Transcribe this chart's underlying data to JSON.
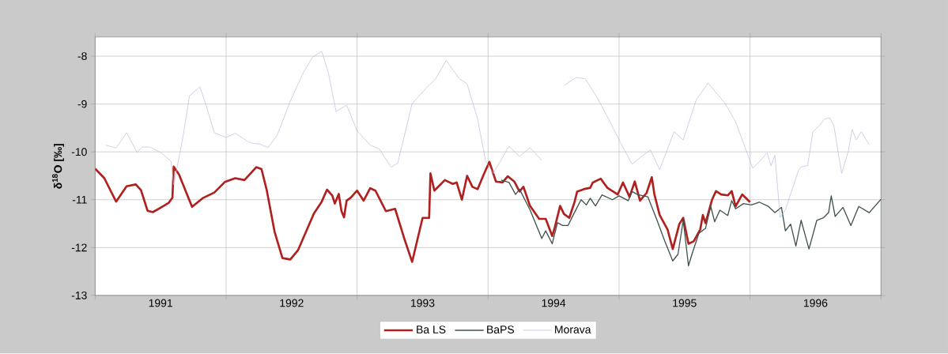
{
  "chart_data": {
    "type": "line",
    "ylabel": "δ$^{18}$O [‰]",
    "xlim": [
      1991,
      1997
    ],
    "ylim": [
      -13,
      -7.6
    ],
    "xticks": [
      {
        "value": 1991,
        "label": null
      },
      {
        "value": 1991.5,
        "label": "1991"
      },
      {
        "value": 1992,
        "label": null
      },
      {
        "value": 1992.5,
        "label": "1992"
      },
      {
        "value": 1993,
        "label": null
      },
      {
        "value": 1993.5,
        "label": "1993"
      },
      {
        "value": 1994,
        "label": null
      },
      {
        "value": 1994.5,
        "label": "1994"
      },
      {
        "value": 1995,
        "label": null
      },
      {
        "value": 1995.5,
        "label": "1995"
      },
      {
        "value": 1996,
        "label": null
      },
      {
        "value": 1996.5,
        "label": "1996"
      },
      {
        "value": 1997,
        "label": null
      }
    ],
    "yticks": [
      -13,
      -12,
      -11,
      -10,
      -9,
      -8
    ],
    "grid": true,
    "legend": "bottom",
    "series": [
      {
        "name": "Ba LS",
        "color": "#b0201e",
        "x": [
          1991.0,
          1991.07,
          1991.16,
          1991.24,
          1991.31,
          1991.35,
          1991.4,
          1991.44,
          1991.51,
          1991.56,
          1991.59,
          1991.6,
          1991.64,
          1991.74,
          1991.82,
          1991.91,
          1991.99,
          1992.07,
          1992.14,
          1992.23,
          1992.27,
          1992.31,
          1992.37,
          1992.43,
          1992.49,
          1992.55,
          1992.67,
          1992.73,
          1992.77,
          1992.81,
          1992.83,
          1992.86,
          1992.88,
          1992.9,
          1992.92,
          1992.95,
          1993.0,
          1993.05,
          1993.1,
          1993.14,
          1993.22,
          1993.29,
          1993.36,
          1993.42,
          1993.5,
          1993.55,
          1993.56,
          1993.59,
          1993.67,
          1993.73,
          1993.76,
          1993.8,
          1993.84,
          1993.88,
          1993.92,
          1993.97,
          1994.01,
          1994.06,
          1994.11,
          1994.15,
          1994.2,
          1994.24,
          1994.27,
          1994.32,
          1994.39,
          1994.44,
          1994.49,
          1994.51,
          1994.55,
          1994.58,
          1994.62,
          1994.66,
          1994.68,
          1994.73,
          1994.78,
          1994.8,
          1994.86,
          1994.91,
          1994.99,
          1995.03,
          1995.08,
          1995.12,
          1995.16,
          1995.21,
          1995.25,
          1995.27,
          1995.31,
          1995.37,
          1995.41,
          1995.46,
          1995.49,
          1995.53,
          1995.57,
          1995.62,
          1995.64,
          1995.66,
          1995.71,
          1995.74,
          1995.78,
          1995.83,
          1995.86,
          1995.89,
          1995.94,
          1996.0
        ],
        "values": [
          -10.35,
          -10.55,
          -11.04,
          -10.72,
          -10.68,
          -10.8,
          -11.23,
          -11.26,
          -11.15,
          -11.07,
          -10.96,
          -10.31,
          -10.47,
          -11.15,
          -10.97,
          -10.85,
          -10.63,
          -10.55,
          -10.59,
          -10.32,
          -10.36,
          -10.8,
          -11.67,
          -12.22,
          -12.25,
          -12.05,
          -11.29,
          -11.04,
          -10.79,
          -10.91,
          -11.08,
          -10.88,
          -11.23,
          -11.37,
          -11.02,
          -10.96,
          -10.81,
          -11.02,
          -10.76,
          -10.81,
          -11.24,
          -11.19,
          -11.81,
          -12.3,
          -11.38,
          -11.38,
          -10.45,
          -10.81,
          -10.59,
          -10.67,
          -10.64,
          -11.0,
          -10.5,
          -10.73,
          -10.78,
          -10.45,
          -10.21,
          -10.62,
          -10.64,
          -10.51,
          -10.62,
          -10.83,
          -10.73,
          -11.13,
          -11.4,
          -11.4,
          -11.76,
          -11.57,
          -11.13,
          -11.3,
          -11.38,
          -11.05,
          -10.83,
          -10.78,
          -10.75,
          -10.64,
          -10.56,
          -10.75,
          -10.89,
          -10.64,
          -10.94,
          -10.62,
          -11.02,
          -10.86,
          -10.53,
          -10.89,
          -11.32,
          -11.62,
          -12.03,
          -11.51,
          -11.38,
          -11.92,
          -11.87,
          -11.62,
          -11.32,
          -11.49,
          -11.0,
          -10.82,
          -10.89,
          -10.91,
          -10.82,
          -11.14,
          -10.89,
          -11.05
        ]
      },
      {
        "name": "BaPS",
        "color": "#3f524c",
        "x": [
          1994.1,
          1994.16,
          1994.21,
          1994.24,
          1994.32,
          1994.41,
          1994.44,
          1994.49,
          1994.53,
          1994.57,
          1994.61,
          1994.65,
          1994.71,
          1994.75,
          1994.78,
          1994.82,
          1994.87,
          1994.95,
          1995.0,
          1995.07,
          1995.1,
          1995.14,
          1995.22,
          1995.29,
          1995.35,
          1995.41,
          1995.45,
          1995.49,
          1995.53,
          1995.56,
          1995.61,
          1995.66,
          1995.7,
          1995.73,
          1995.77,
          1995.83,
          1995.86,
          1995.89,
          1995.95,
          1996.01,
          1996.07,
          1996.14,
          1996.19,
          1996.24,
          1996.27,
          1996.31,
          1996.35,
          1996.39,
          1996.45,
          1996.51,
          1996.56,
          1996.6,
          1996.62,
          1996.65,
          1996.71,
          1996.77,
          1996.83,
          1996.91,
          1997.0
        ],
        "values": [
          -10.59,
          -10.64,
          -10.89,
          -10.78,
          -11.21,
          -11.81,
          -11.65,
          -11.92,
          -11.48,
          -11.54,
          -11.54,
          -11.32,
          -11.0,
          -11.11,
          -10.97,
          -11.13,
          -10.9,
          -11.0,
          -10.92,
          -11.02,
          -10.83,
          -10.89,
          -10.94,
          -11.43,
          -11.87,
          -12.28,
          -12.14,
          -11.43,
          -12.38,
          -12.11,
          -11.7,
          -11.6,
          -11.14,
          -11.46,
          -11.22,
          -11.33,
          -11.02,
          -11.19,
          -11.08,
          -11.11,
          -11.05,
          -11.14,
          -11.27,
          -11.16,
          -11.65,
          -11.51,
          -11.97,
          -11.43,
          -12.03,
          -11.43,
          -11.38,
          -11.27,
          -10.92,
          -11.35,
          -11.16,
          -11.54,
          -11.14,
          -11.27,
          -10.99
        ]
      },
      {
        "name": "Morava",
        "color": "#b8b8dc",
        "x": [
          1991.08,
          1991.16,
          1991.24,
          1991.32,
          1991.36,
          1991.42,
          1991.51,
          1991.58,
          1991.6,
          1991.67,
          1991.72,
          1991.8,
          1991.85,
          1991.91,
          1992.0,
          1992.07,
          1992.18,
          1992.26,
          1992.32,
          1992.39,
          1992.49,
          1992.59,
          1992.66,
          1992.73,
          1992.78,
          1992.84,
          1992.92,
          1993.0,
          1993.1,
          1993.17,
          1993.26,
          1993.31,
          1993.42,
          1993.52,
          1993.6,
          1993.68,
          1993.78,
          1993.84,
          1993.92,
          1993.98,
          1994.04,
          1994.16,
          1994.24,
          1994.32,
          1994.41,
          1994.5,
          1994.58,
          1994.67,
          1994.74,
          1994.83,
          1994.91,
          1995.0,
          1995.1,
          1995.17,
          1995.24,
          1995.31,
          1995.42,
          1995.49,
          1995.59,
          1995.68,
          1995.81,
          1995.89,
          1996.02,
          1996.07,
          1996.13,
          1996.16,
          1996.19,
          1996.23,
          1996.27,
          1996.37,
          1996.39,
          1996.44,
          1996.48,
          1996.53,
          1996.57,
          1996.61,
          1996.64,
          1996.67,
          1996.7,
          1996.75,
          1996.78,
          1996.81,
          1996.85,
          1996.88,
          1996.91
        ],
        "values": [
          -9.86,
          -9.92,
          -9.6,
          -10.01,
          -9.9,
          -9.9,
          -10.03,
          -10.2,
          -10.69,
          -9.7,
          -8.83,
          -8.64,
          -9.05,
          -9.6,
          -9.7,
          -9.61,
          -9.81,
          -9.84,
          -9.91,
          -9.65,
          -8.94,
          -8.34,
          -8.02,
          -7.9,
          -8.34,
          -9.16,
          -9.02,
          -9.56,
          -9.86,
          -9.94,
          -10.32,
          -10.24,
          -8.99,
          -8.69,
          -8.47,
          -8.09,
          -8.47,
          -8.58,
          -9.31,
          -10.18,
          -10.45,
          -9.88,
          -10.1,
          -9.91,
          -10.18,
          null,
          -8.61,
          -8.45,
          -8.47,
          -8.85,
          -9.26,
          -9.75,
          -10.26,
          -10.1,
          -9.96,
          -10.37,
          -9.58,
          -9.75,
          -8.91,
          -8.56,
          -8.99,
          -9.37,
          -10.34,
          -10.21,
          -10.02,
          -10.29,
          -10.07,
          -11.37,
          -11.21,
          -10.39,
          -10.31,
          -10.29,
          -9.58,
          -9.45,
          -9.31,
          -9.29,
          -9.45,
          -9.96,
          -10.45,
          -9.99,
          -9.53,
          -9.75,
          -9.58,
          -9.72,
          -9.85
        ]
      }
    ]
  }
}
